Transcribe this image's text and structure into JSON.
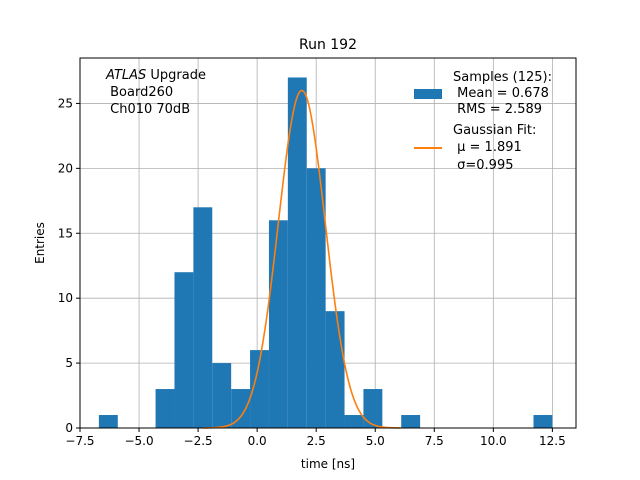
{
  "chart_data": {
    "type": "bar",
    "title": "Run 192",
    "xlabel": "time [ns]",
    "ylabel": "Entries",
    "xlim": [
      -7.5,
      13.5
    ],
    "ylim": [
      0,
      28.5
    ],
    "grid": true,
    "xticks": [
      -7.5,
      -5.0,
      -2.5,
      0.0,
      2.5,
      5.0,
      7.5,
      10.0,
      12.5
    ],
    "xtick_labels": [
      "−7.5",
      "−5.0",
      "−2.5",
      "0.0",
      "2.5",
      "5.0",
      "7.5",
      "10.0",
      "12.5"
    ],
    "yticks": [
      0,
      5,
      10,
      15,
      20,
      25
    ],
    "ytick_labels": [
      "0",
      "5",
      "10",
      "15",
      "20",
      "25"
    ],
    "bin_width": 0.8,
    "bins": [
      {
        "x0": -6.7,
        "count": 1
      },
      {
        "x0": -4.3,
        "count": 3
      },
      {
        "x0": -3.5,
        "count": 12
      },
      {
        "x0": -2.7,
        "count": 17
      },
      {
        "x0": -1.9,
        "count": 5
      },
      {
        "x0": -1.1,
        "count": 3
      },
      {
        "x0": -0.3,
        "count": 6
      },
      {
        "x0": 0.5,
        "count": 16
      },
      {
        "x0": 1.3,
        "count": 27
      },
      {
        "x0": 2.1,
        "count": 20
      },
      {
        "x0": 2.9,
        "count": 9
      },
      {
        "x0": 3.7,
        "count": 1
      },
      {
        "x0": 4.5,
        "count": 3
      },
      {
        "x0": 6.1,
        "count": 1
      },
      {
        "x0": 11.7,
        "count": 1
      }
    ],
    "fit": {
      "type": "gaussian",
      "mu": 1.891,
      "sigma": 0.995,
      "amplitude": 26.0
    },
    "annotation": {
      "lines": [
        "ATLAS Upgrade",
        " Board260",
        " Ch010 70dB"
      ]
    },
    "legend": {
      "position": "top-right",
      "entries": [
        {
          "name": "Samples",
          "lines": [
            "Samples (125):",
            " Mean = 0.678",
            " RMS = 2.589"
          ]
        },
        {
          "name": "Gaussian Fit",
          "lines": [
            "Gaussian Fit:",
            " μ = 1.891",
            " σ=0.995"
          ]
        }
      ]
    },
    "colors": {
      "bars": "#1f77b4",
      "fit": "#ff7f0e",
      "grid": "#b0b0b0"
    }
  }
}
